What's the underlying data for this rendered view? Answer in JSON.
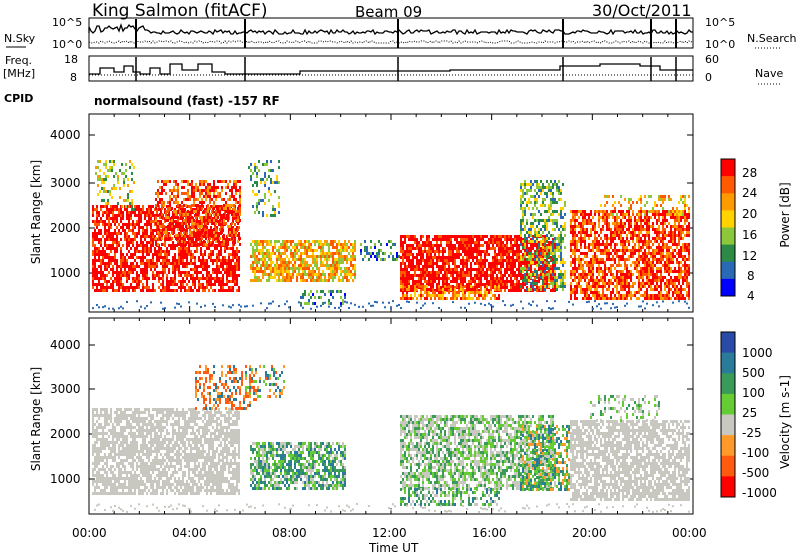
{
  "header": {
    "station": "King Salmon (fitACF)",
    "beam": "Beam 09",
    "date": "30/Oct/2011",
    "mode_text": "normalsound (fast) -157 RF"
  },
  "side_labels": {
    "nsky": "N.Sky",
    "nsearch": "N.Search",
    "freq": "Freq.",
    "freq_unit": "[MHz]",
    "nave": "Nave",
    "cpid": "CPID"
  },
  "chart_data": [
    {
      "type": "line",
      "name": "noise-panel",
      "left_ticks": [
        "10^5",
        "10^0"
      ],
      "right_ticks": [
        "10^5",
        "10^0"
      ],
      "series": [
        {
          "name": "N.Sky",
          "style": "solid"
        },
        {
          "name": "N.Search",
          "style": "dotted"
        }
      ]
    },
    {
      "type": "line",
      "name": "frequency-panel",
      "left_ticks": [
        "18",
        "8"
      ],
      "right_ticks": [
        "60",
        "0"
      ],
      "series": [
        {
          "name": "Freq.",
          "style": "solid"
        },
        {
          "name": "Nave",
          "style": "dotted"
        }
      ]
    },
    {
      "type": "heatmap",
      "name": "power-panel",
      "ylabel": "Slant Range [km]",
      "yticks": [
        "4000",
        "3000",
        "2000",
        "1000"
      ],
      "colorbar_label": "Power [dB]",
      "colorbar_ticks": [
        "28",
        "24",
        "20",
        "16",
        "12",
        "8",
        "4"
      ],
      "colorbar_colors": [
        "#ff0000",
        "#ff5a00",
        "#ff9a00",
        "#ffd200",
        "#8cc83c",
        "#2a8a46",
        "#2a6ab4",
        "#0000ff"
      ]
    },
    {
      "type": "heatmap",
      "name": "velocity-panel",
      "ylabel": "Slant Range [km]",
      "yticks": [
        "4000",
        "3000",
        "2000",
        "1000"
      ],
      "colorbar_label": "Velocity [m s-1]",
      "colorbar_ticks": [
        "1000",
        "500",
        "100",
        "25",
        "-25",
        "-100",
        "-500",
        "-1000"
      ],
      "colorbar_colors": [
        "#2a4aa8",
        "#2a7a9a",
        "#3a9a5a",
        "#66cc33",
        "#c8c8c0",
        "#ff9a2a",
        "#ff5a10",
        "#ff0000"
      ]
    }
  ],
  "time_axis": {
    "label": "Time UT",
    "ticks": [
      "00:00",
      "04:00",
      "08:00",
      "12:00",
      "16:00",
      "20:00",
      "00:00"
    ]
  }
}
